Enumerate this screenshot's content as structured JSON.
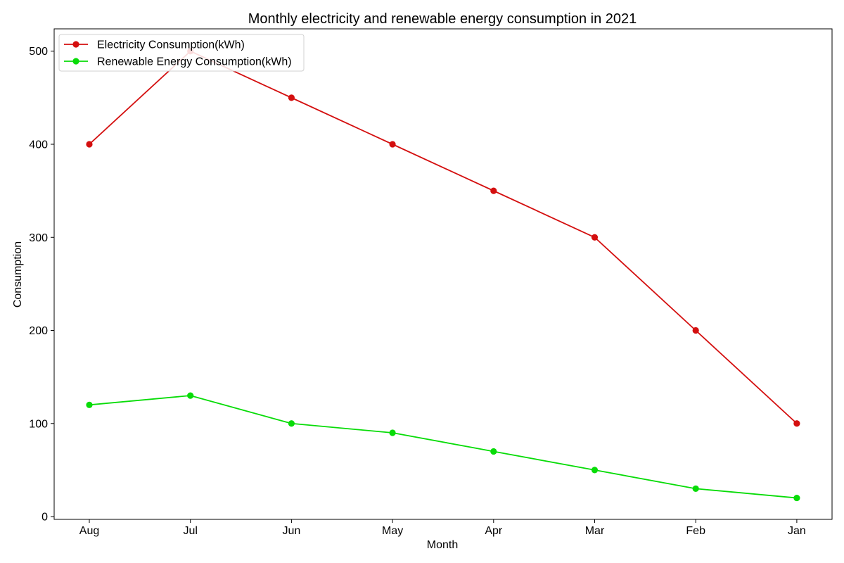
{
  "chart_data": {
    "type": "line",
    "title": "Monthly electricity and renewable energy consumption in 2021",
    "xlabel": "Month",
    "ylabel": "Consumption",
    "categories": [
      "Aug",
      "Jul",
      "Jun",
      "May",
      "Apr",
      "Mar",
      "Feb",
      "Jan"
    ],
    "ylim": [
      -3,
      524
    ],
    "yticks": [
      0,
      100,
      200,
      300,
      400,
      500
    ],
    "grid": false,
    "legend_position": "top-left",
    "series": [
      {
        "name": "Electricity Consumption(kWh)",
        "color": "#d40f0f",
        "values": [
          400,
          500,
          450,
          400,
          350,
          300,
          200,
          100
        ]
      },
      {
        "name": "Renewable Energy Consumption(kWh)",
        "color": "#08dc08",
        "values": [
          120,
          130,
          100,
          90,
          70,
          50,
          30,
          20
        ]
      }
    ]
  }
}
